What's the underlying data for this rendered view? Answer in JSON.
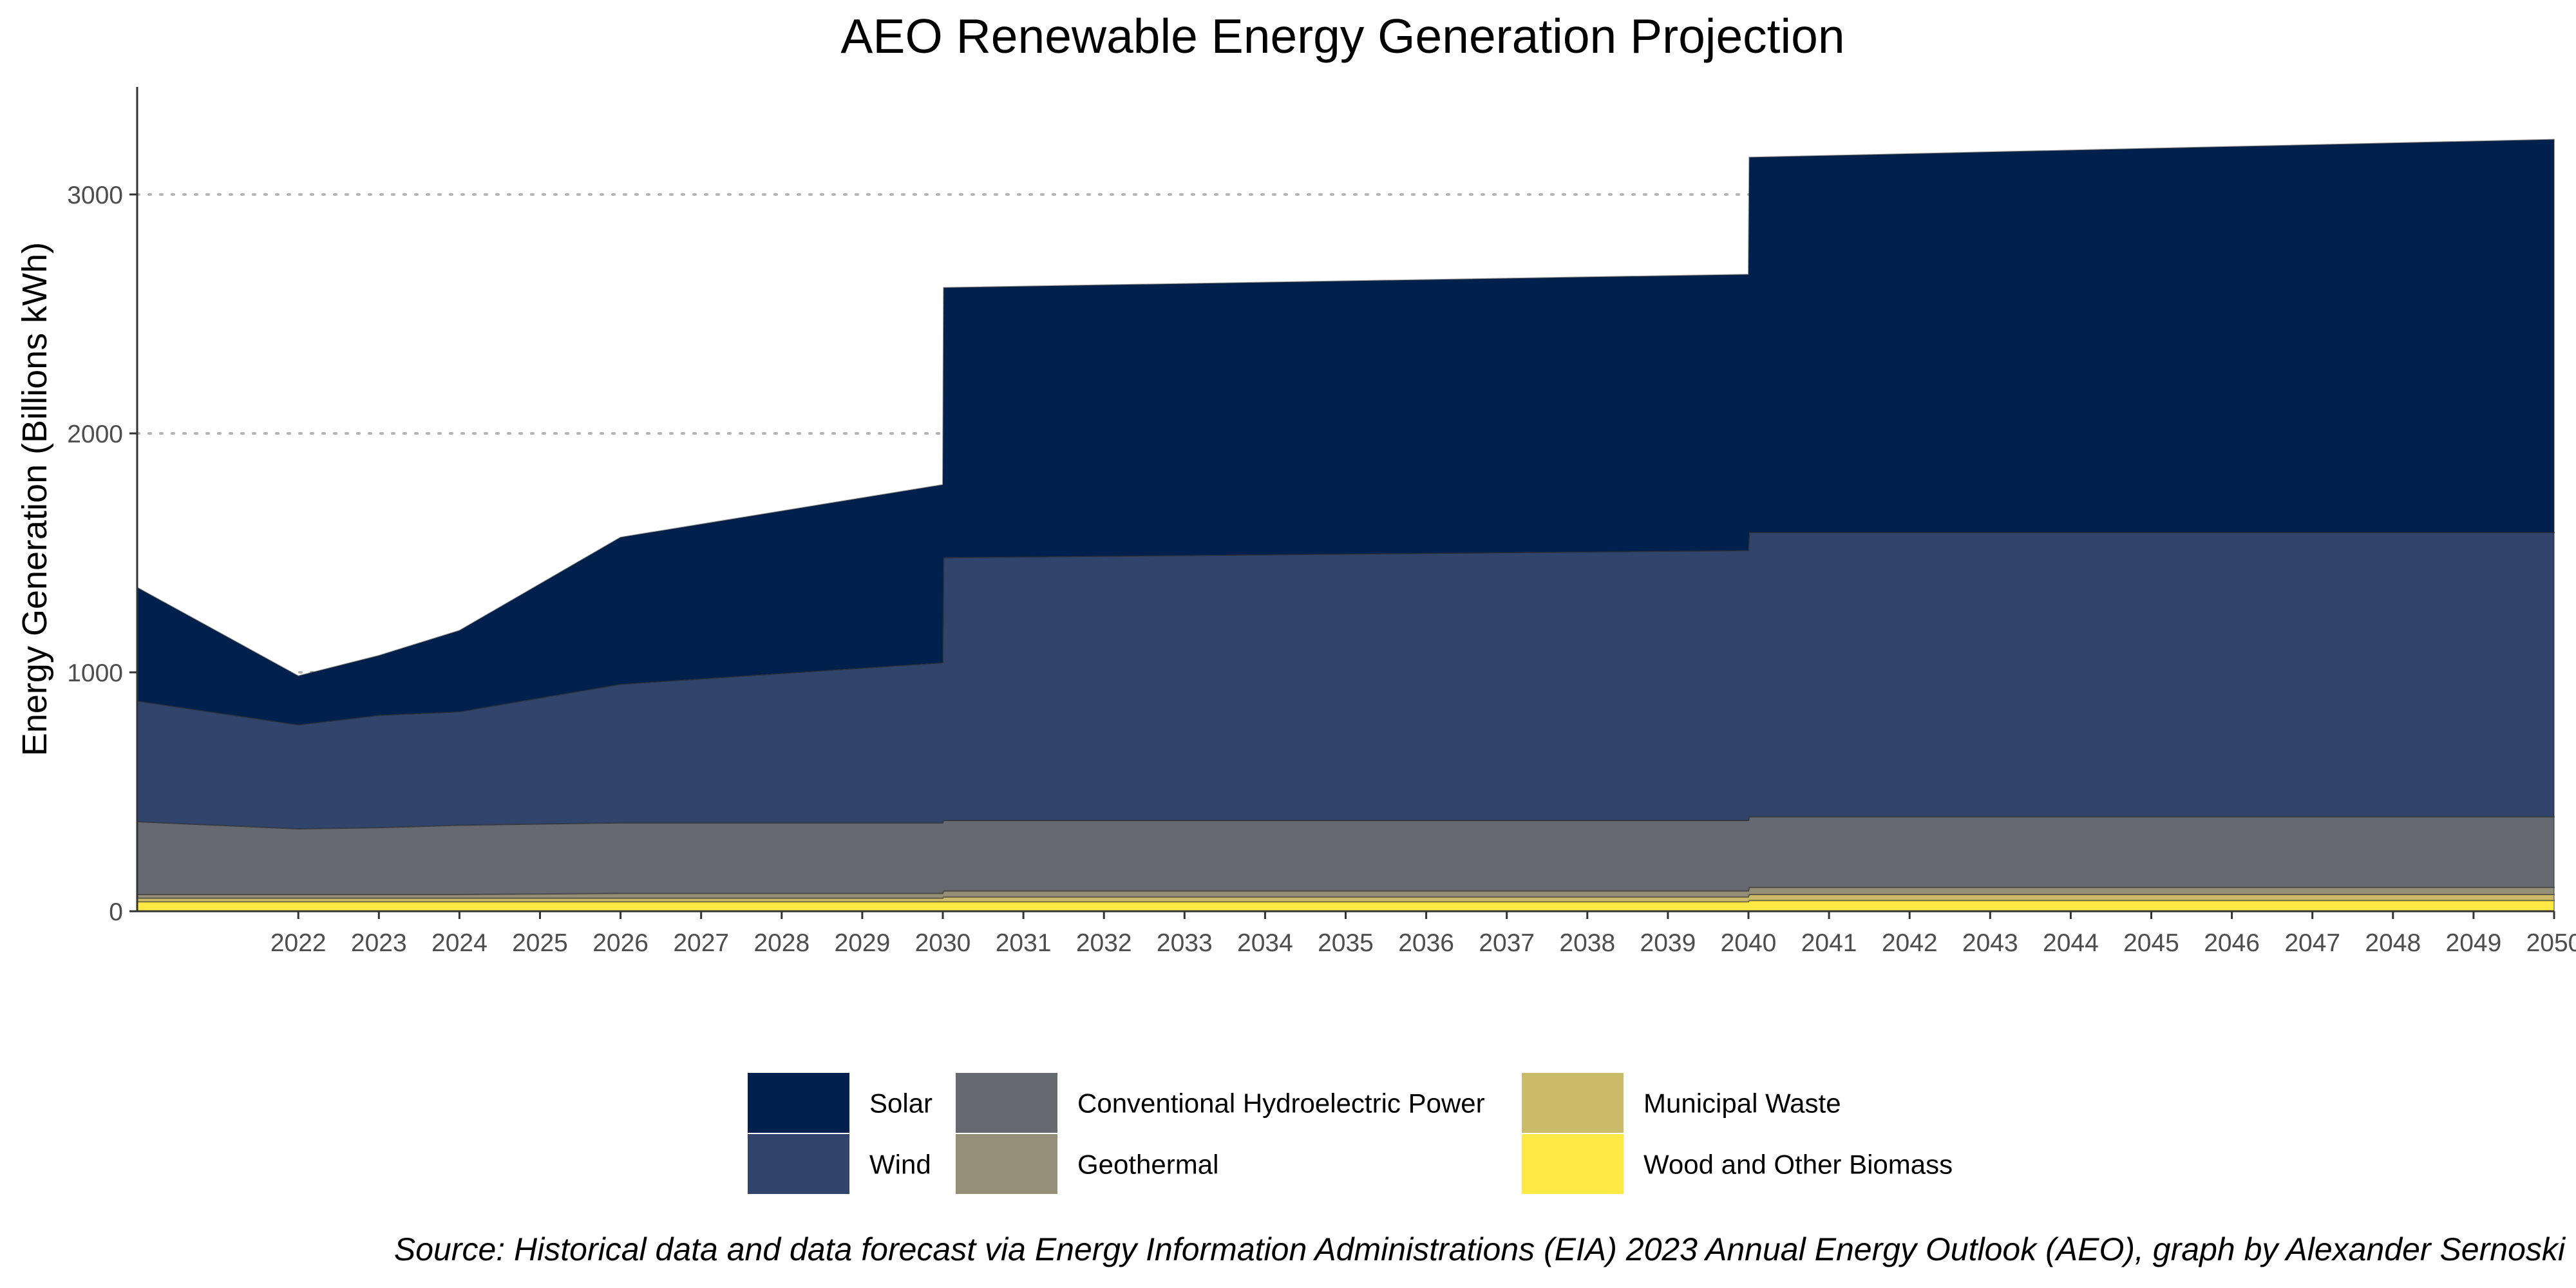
{
  "chart_data": {
    "type": "area",
    "title": "AEO Renewable Energy Generation Projection",
    "xlabel": "",
    "ylabel": "Energy Generation (Billions kWh)",
    "caption": "Source: Historical data and data forecast via Energy Information Administrations (EIA) 2023 Annual Energy Outlook (AEO), graph by Alexander Sernoski",
    "xlim": [
      2020,
      2050
    ],
    "ylim": [
      0,
      3450
    ],
    "grid": "horizontal dotted major lines",
    "legend_position": "bottom",
    "x_ticks": [
      "2022",
      "2023",
      "2024",
      "2025",
      "2026",
      "2027",
      "2028",
      "2029",
      "2030",
      "2031",
      "2032",
      "2033",
      "2034",
      "2035",
      "2036",
      "2037",
      "2038",
      "2039",
      "2040",
      "2041",
      "2042",
      "2043",
      "2044",
      "2045",
      "2046",
      "2047",
      "2048",
      "2049",
      "2050"
    ],
    "y_ticks": [
      "0",
      "1000",
      "2000",
      "3000"
    ],
    "x": [
      2020,
      2022,
      2023,
      2024,
      2026,
      2030,
      2030.01,
      2040,
      2040.01,
      2050
    ],
    "stack_order": "bottom to top: Wood and Other Biomass, Municipal Waste, Geothermal, Conventional Hydroelectric Power, Wind, Solar",
    "series": [
      {
        "name": "Wood and Other Biomass",
        "color": "#FFE945",
        "values": [
          40,
          40,
          40,
          40,
          40,
          40,
          40,
          40,
          45,
          45
        ]
      },
      {
        "name": "Municipal Waste",
        "color": "#CBBA69",
        "values": [
          15,
          15,
          15,
          15,
          15,
          15,
          20,
          20,
          25,
          25
        ]
      },
      {
        "name": "Geothermal",
        "color": "#958F78",
        "values": [
          15,
          15,
          15,
          15,
          20,
          20,
          25,
          25,
          30,
          30
        ]
      },
      {
        "name": "Conventional Hydroelectric Power",
        "color": "#666970",
        "values": [
          305,
          275,
          280,
          290,
          295,
          295,
          295,
          295,
          295,
          295
        ]
      },
      {
        "name": "Wind",
        "color": "#31446B",
        "values": [
          505,
          435,
          470,
          475,
          580,
          670,
          1100,
          1130,
          1190,
          1190
        ]
      },
      {
        "name": "Solar",
        "color": "#00204D",
        "values": [
          475,
          205,
          250,
          340,
          615,
          745,
          1130,
          1155,
          1570,
          1645
        ]
      }
    ]
  },
  "legend": {
    "items": [
      "Solar",
      "Wind",
      "Conventional Hydroelectric Power",
      "Geothermal",
      "Municipal Waste",
      "Wood and Other Biomass"
    ]
  }
}
